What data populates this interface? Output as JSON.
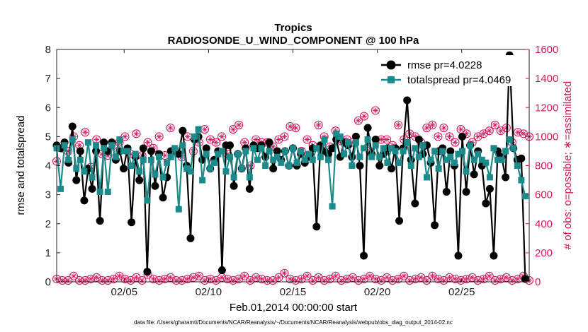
{
  "chart_data": {
    "type": "line",
    "title": "Tropics",
    "subtitle": "RADIOSONDE_U_WIND_COMPONENT @ 100 hPa",
    "xlabel": "Feb.01,2014 00:00:00 start",
    "ylabel": "rmse and totalspread",
    "ylabel_right": "# of obs: o=possible; ∗=assimilated",
    "footnote": "data file: /Users/gharamti/Documents/NCAR/Reanalysis/~/Documents/NCAR/Reanalysis/webpub/obs_diag_output_2014-02.nc",
    "xlim": [
      1,
      29
    ],
    "ylim": [
      0,
      8
    ],
    "ylim_right": [
      0,
      1600
    ],
    "x_ticks": [
      5,
      10,
      15,
      20,
      25
    ],
    "x_tick_labels": [
      "02/05",
      "02/10",
      "02/15",
      "02/20",
      "02/25"
    ],
    "y_ticks": [
      0,
      1,
      2,
      3,
      4,
      5,
      6,
      7,
      8
    ],
    "y_ticks_right": [
      0,
      200,
      400,
      600,
      800,
      1000,
      1200,
      1400,
      1600
    ],
    "legend_position": "top-right",
    "series": [
      {
        "name": "rmse pr=4.0228",
        "color": "#000000",
        "marker": "circle",
        "values": [
          4.7,
          4.6,
          4.8,
          4.1,
          5.35,
          3.5,
          4.5,
          2.8,
          3.9,
          3.2,
          4.5,
          2.1,
          4.8,
          4.5,
          4.8,
          4.2,
          4.5,
          3.9,
          4.6,
          2.05,
          4.3,
          3.5,
          4.6,
          0.35,
          4.5,
          3.3,
          4.4,
          2.9,
          3.6,
          4.5,
          4.5,
          4.4,
          5.2,
          4.0,
          1.5,
          4.9,
          5.0,
          4.2,
          4.6,
          3.9,
          4.2,
          4.5,
          0.4,
          4.7,
          4.7,
          3.3,
          4.4,
          3.9,
          4.6,
          3.2,
          4.7,
          4.6,
          4.7,
          4.3,
          4.8,
          3.9,
          4.5,
          4.2,
          4.5,
          4.0,
          4.6,
          4.0,
          4.4,
          4.1,
          4.3,
          4.6,
          1.9,
          4.7,
          4.5,
          4.4,
          4.6,
          4.9,
          4.3,
          4.8,
          4.7,
          4.3,
          5.0,
          4.0,
          0.9,
          5.3,
          4.4,
          4.9,
          4.0,
          4.4,
          4.6,
          3.9,
          4.6,
          2.1,
          4.6,
          6.25,
          4.2,
          2.7,
          4.9,
          4.4,
          4.7,
          4.1,
          1.95,
          4.5,
          4.6,
          3.1,
          4.5,
          4.0,
          0.9,
          5.0,
          3.1,
          4.7,
          3.7,
          4.5,
          4.0,
          2.7,
          3.2,
          0.9,
          4.5,
          4.3,
          3.6,
          7.8,
          4.6,
          4.2,
          4.25,
          0.1
        ],
        "x_start": 1,
        "x_step": 0.23333
      },
      {
        "name": "totalspread pr=4.0469",
        "color": "#1b8a8a",
        "marker": "square",
        "values": [
          4.6,
          3.2,
          4.7,
          4.2,
          4.9,
          3.9,
          4.2,
          3.8,
          4.8,
          3.6,
          4.7,
          3.1,
          4.6,
          3.1,
          4.7,
          4.3,
          4.9,
          4.5,
          4.5,
          4.0,
          4.4,
          3.8,
          4.2,
          2.8,
          4.2,
          3.7,
          4.3,
          3.6,
          4.1,
          4.3,
          4.6,
          2.5,
          4.7,
          3.9,
          3.8,
          5.0,
          5.25,
          3.5,
          4.4,
          3.9,
          4.1,
          4.4,
          4.5,
          3.8,
          4.3,
          3.6,
          4.4,
          3.9,
          4.5,
          3.6,
          4.6,
          4.2,
          4.6,
          4.0,
          4.5,
          4.2,
          4.3,
          4.1,
          4.5,
          4.0,
          4.6,
          4.1,
          4.5,
          4.2,
          4.4,
          4.2,
          4.6,
          4.3,
          4.9,
          4.2,
          2.6,
          5.1,
          5.0,
          4.4,
          4.8,
          4.0,
          4.8,
          4.3,
          4.6,
          4.9,
          4.3,
          4.7,
          4.3,
          4.6,
          4.1,
          4.6,
          4.5,
          4.1,
          4.5,
          4.8,
          4.0,
          4.6,
          4.3,
          4.7,
          3.6,
          4.2,
          4.5,
          3.9,
          4.5,
          4.2,
          4.3,
          4.1,
          4.4,
          4.5,
          3.8,
          4.7,
          4.2,
          4.4,
          4.2,
          4.1,
          3.6,
          4.6,
          4.2,
          4.2,
          4.5,
          4.9,
          4.6,
          4.0,
          3.5,
          2.95
        ],
        "x_start": 1,
        "x_step": 0.23333
      },
      {
        "name": "obs possible",
        "axis": "right",
        "color": "#d6175c",
        "marker": "circle-open",
        "values_top": [
          830,
          920,
          900,
          1000,
          940,
          1030,
          790,
          980,
          880,
          870,
          940,
          960,
          1000,
          880,
          1020,
          870,
          960,
          920,
          1000,
          870,
          1060,
          900,
          860,
          1000,
          900,
          960,
          1050,
          980,
          960,
          1000,
          880,
          1050,
          1080,
          960,
          800,
          980,
          960,
          960,
          930,
          980,
          1000,
          1070,
          1060,
          900,
          980,
          940,
          1080,
          1000,
          930,
          1040,
          970,
          980,
          960,
          1110,
          1140,
          900,
          1180,
          980,
          980,
          940,
          1080,
          980,
          1020,
          1000,
          960,
          1060,
          1080,
          1000,
          1060,
          1000,
          960,
          1050,
          1020,
          960,
          1000,
          1020,
          1040,
          1080,
          1040,
          1060,
          960,
          1030,
          1020,
          1000
        ],
        "values_bottom": [
          20,
          10,
          10,
          40,
          10,
          10,
          20,
          30,
          10,
          10,
          20,
          40,
          20,
          10,
          30,
          10,
          50,
          20,
          10,
          20,
          30,
          10,
          10,
          20,
          30,
          40,
          10,
          20,
          10,
          30,
          20,
          10,
          20,
          40,
          10,
          30,
          20,
          10,
          10,
          30,
          60,
          20,
          10,
          20,
          40,
          10,
          30,
          10,
          20,
          40,
          10,
          20,
          30,
          10,
          20,
          40,
          20,
          10,
          30,
          10,
          20,
          40,
          10,
          20,
          30,
          10,
          40,
          20,
          10,
          30,
          20,
          10,
          20,
          30,
          10,
          20,
          40,
          10,
          20,
          30,
          10,
          20,
          40,
          10
        ]
      }
    ]
  }
}
